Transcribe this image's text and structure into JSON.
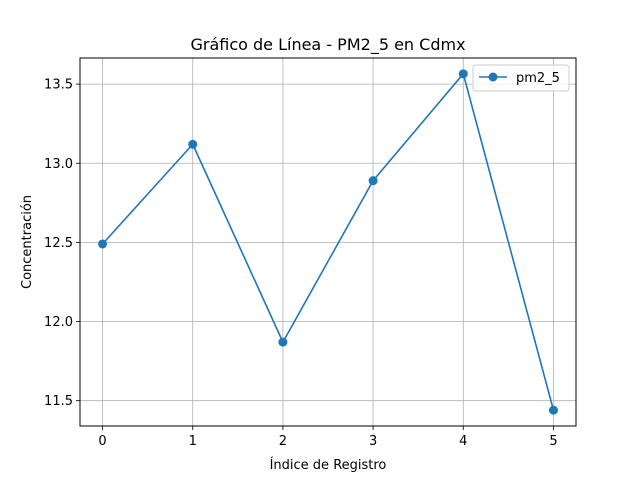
{
  "chart_data": {
    "type": "line",
    "title": "Gráfico de Línea - PM2_5 en Cdmx",
    "xlabel": "Índice de Registro",
    "ylabel": "Concentración",
    "x": [
      0,
      1,
      2,
      3,
      4,
      5
    ],
    "series": [
      {
        "name": "pm2_5",
        "values": [
          12.49,
          13.12,
          11.87,
          12.89,
          13.565,
          11.44
        ],
        "color": "#1f77b4",
        "marker": "circle"
      }
    ],
    "xlim": [
      -0.25,
      5.25
    ],
    "ylim": [
      11.34,
      13.665
    ],
    "xticks": [
      "0",
      "1",
      "2",
      "3",
      "4",
      "5"
    ],
    "yticks": [
      "11.5",
      "12.0",
      "12.5",
      "13.0",
      "13.5"
    ],
    "grid": true,
    "legend": "upper-right"
  }
}
